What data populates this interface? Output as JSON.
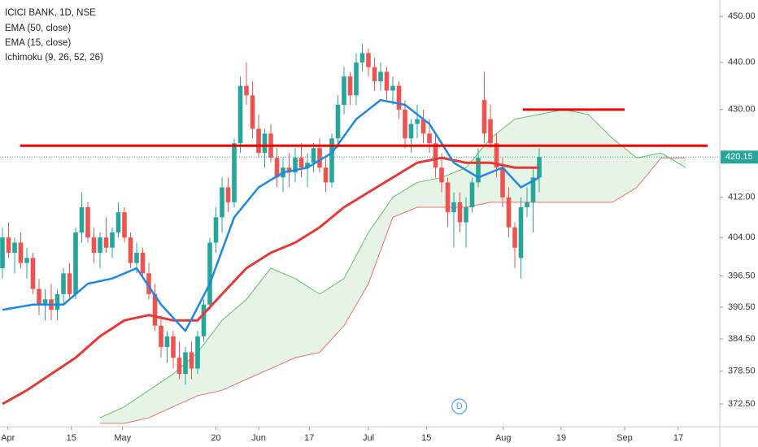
{
  "chart_data": {
    "type": "candlestick",
    "title": "ICICI BANK, 1D, NSE",
    "log": true,
    "up_color": "#26a69a",
    "down_color": "#ef5350",
    "ylim": [
      368.4,
      453.6
    ],
    "xlim": [
      -0.4,
      117.6
    ],
    "yticks": [
      {
        "value": 450,
        "label": "450.00"
      },
      {
        "value": 440,
        "label": "440.00"
      },
      {
        "value": 430,
        "label": "430.00"
      },
      {
        "value": 412,
        "label": "412.00"
      },
      {
        "value": 404,
        "label": "404.00"
      },
      {
        "value": 396.5,
        "label": "396.50"
      },
      {
        "value": 390.5,
        "label": "390.50"
      },
      {
        "value": 384.5,
        "label": "384.50"
      },
      {
        "value": 378.5,
        "label": "378.50"
      },
      {
        "value": 372.5,
        "label": "372.50"
      }
    ],
    "xticks": [
      {
        "value": 0.9,
        "label": "Apr"
      },
      {
        "value": 11.3,
        "label": "15"
      },
      {
        "value": 19.7,
        "label": "May"
      },
      {
        "value": 35,
        "label": "20"
      },
      {
        "value": 42,
        "label": "Jun"
      },
      {
        "value": 50.3,
        "label": "17"
      },
      {
        "value": 60,
        "label": "Jul"
      },
      {
        "value": 69.5,
        "label": "15"
      },
      {
        "value": 82.1,
        "label": "Aug"
      },
      {
        "value": 91.6,
        "label": "19"
      },
      {
        "value": 102,
        "label": "Sep"
      },
      {
        "value": 110.8,
        "label": "17"
      }
    ],
    "open": [
      398,
      404,
      401,
      403,
      399,
      400,
      394,
      391,
      392,
      390,
      393,
      397,
      393,
      405,
      410,
      404,
      401,
      404,
      402,
      405,
      409,
      404,
      399,
      401,
      397,
      393,
      387,
      383,
      385,
      381,
      378,
      382,
      379,
      385,
      391,
      403,
      408,
      414,
      411,
      423,
      435,
      433,
      426,
      421,
      425,
      420,
      416,
      418,
      417,
      420,
      418,
      419,
      422,
      418,
      415,
      424,
      431,
      437,
      433,
      440,
      442,
      439,
      436,
      438,
      434,
      435,
      430,
      424,
      427,
      428,
      425,
      423,
      418,
      415,
      409,
      411,
      407,
      410,
      415,
      432,
      428,
      423,
      418,
      412,
      406,
      400,
      410,
      411,
      416
    ],
    "high": [
      406,
      407,
      404,
      405,
      402,
      401,
      396,
      394,
      395,
      394,
      398,
      399,
      406,
      413,
      411,
      406,
      405,
      408,
      406,
      411,
      410,
      405,
      403,
      402,
      399,
      395,
      389,
      386,
      386,
      384,
      383,
      384,
      386,
      392,
      404,
      410,
      416,
      416,
      424,
      437,
      440,
      436,
      429,
      426,
      427,
      422,
      420,
      421,
      422,
      423,
      421,
      423,
      424,
      420,
      425,
      433,
      439,
      438,
      442,
      444,
      443,
      441,
      440,
      439,
      437,
      436,
      432,
      428,
      431,
      430,
      428,
      425,
      421,
      416,
      413,
      413,
      412,
      416,
      422,
      438,
      431,
      425,
      420,
      414,
      407,
      412,
      414,
      418,
      422
    ],
    "low": [
      396,
      400,
      397,
      398,
      396,
      393,
      389,
      388,
      388,
      388,
      391,
      392,
      392,
      403,
      403,
      399,
      398,
      401,
      400,
      404,
      403,
      398,
      397,
      396,
      392,
      386,
      381,
      380,
      379,
      377,
      376,
      377,
      378,
      384,
      390,
      401,
      405,
      409,
      410,
      421,
      431,
      424,
      420,
      418,
      419,
      414,
      413,
      414,
      415,
      416,
      414,
      417,
      417,
      413,
      414,
      422,
      429,
      431,
      431,
      438,
      437,
      434,
      434,
      432,
      431,
      428,
      422,
      421,
      424,
      423,
      421,
      416,
      413,
      406,
      402,
      405,
      402,
      409,
      414,
      423,
      422,
      416,
      410,
      404,
      398,
      396,
      408,
      405,
      413
    ],
    "close": [
      404,
      401,
      403,
      399,
      400,
      394,
      391,
      392,
      390,
      393,
      397,
      393,
      405,
      410,
      404,
      401,
      404,
      402,
      405,
      409,
      404,
      399,
      401,
      397,
      393,
      387,
      383,
      385,
      381,
      378,
      382,
      379,
      385,
      391,
      403,
      408,
      414,
      411,
      423,
      435,
      433,
      426,
      421,
      425,
      420,
      416,
      418,
      417,
      420,
      418,
      419,
      422,
      418,
      415,
      424,
      431,
      437,
      433,
      440,
      442,
      439,
      436,
      438,
      434,
      435,
      430,
      424,
      427,
      428,
      425,
      423,
      418,
      415,
      409,
      411,
      407,
      410,
      415,
      420,
      425,
      423,
      418,
      412,
      406,
      402,
      410,
      411,
      416,
      420.15
    ],
    "series": [
      {
        "name": "EMA (50, close)",
        "color": "#e53935",
        "width": 3,
        "x": [
          0,
          4,
          8,
          12,
          16,
          20,
          24,
          28,
          32,
          36,
          40,
          44,
          48,
          52,
          56,
          60,
          64,
          68,
          72,
          76,
          80,
          84,
          88
        ],
        "values": [
          372.5,
          375,
          378,
          381,
          385,
          388,
          389,
          388,
          388,
          393,
          398,
          401,
          403,
          406,
          410,
          413,
          416,
          419,
          420,
          419,
          419,
          418,
          418
        ]
      },
      {
        "name": "EMA (15, close)",
        "color": "#1e88e5",
        "width": 2.5,
        "x": [
          0,
          5,
          10,
          14,
          18,
          22,
          26,
          30,
          34,
          38,
          42,
          46,
          50,
          54,
          58,
          62,
          66,
          70,
          74,
          78,
          82,
          85,
          88
        ],
        "values": [
          390,
          391,
          391,
          395,
          396,
          398,
          391,
          386,
          395,
          408,
          414,
          417,
          418,
          421,
          428,
          432,
          431,
          427,
          419,
          416,
          418,
          414,
          416
        ]
      }
    ],
    "ichimoku": {
      "name": "Ichimoku (9, 26, 52, 26)",
      "color_a": "#66bb6a",
      "color_b": "#e57373",
      "x": [
        16,
        20,
        24,
        28,
        32,
        36,
        40,
        44,
        48,
        52,
        56,
        60,
        64,
        68,
        72,
        76,
        80,
        84,
        88,
        92,
        96,
        100,
        104,
        108,
        112
      ],
      "span_a": [
        370,
        372,
        375,
        378,
        382,
        388,
        392,
        398,
        396,
        393,
        396,
        405,
        412,
        415,
        416,
        418,
        424,
        428,
        429,
        430,
        429,
        424,
        420,
        421,
        418
      ],
      "span_b": [
        369,
        369,
        370,
        372,
        374,
        375,
        377,
        379,
        381,
        382,
        387,
        395,
        408,
        410,
        410,
        410,
        411,
        411,
        411,
        411,
        411,
        411,
        414,
        420,
        420
      ]
    },
    "lines": [
      {
        "value": 422.5,
        "x": [
          2.9,
          115.6
        ],
        "color": "#f00000"
      },
      {
        "value": 430,
        "x": [
          85.3,
          102
        ],
        "color": "#f00000"
      }
    ],
    "annotations": [
      {
        "text": "D",
        "x": 74.9
      }
    ]
  }
}
